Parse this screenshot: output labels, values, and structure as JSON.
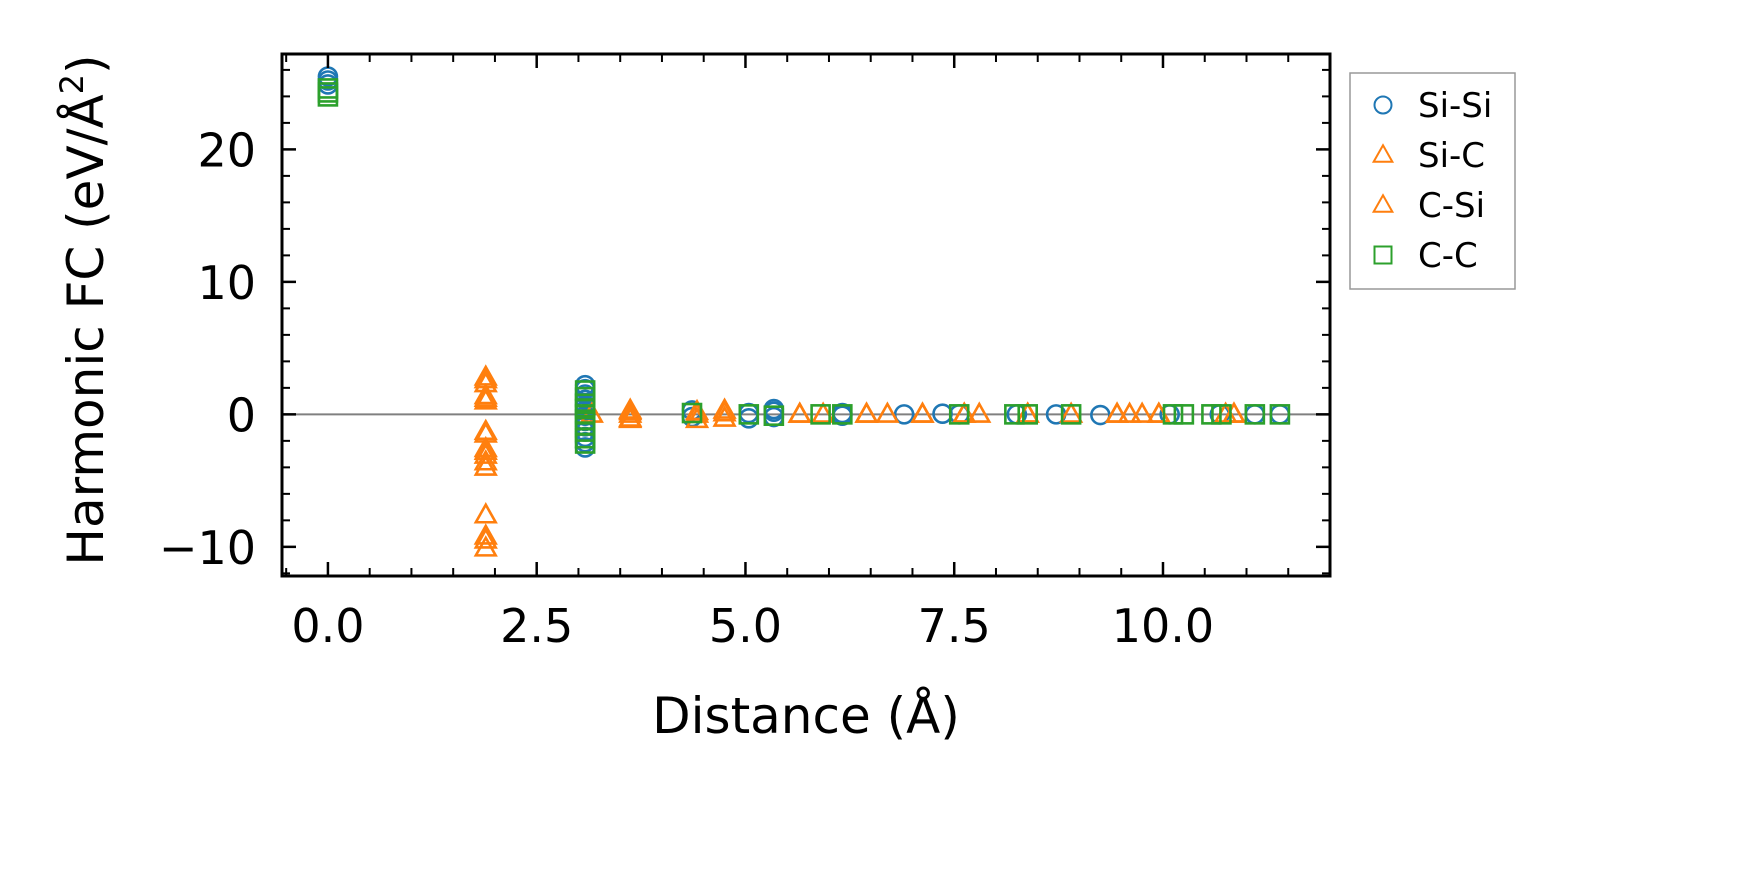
{
  "chart_data": {
    "type": "scatter",
    "title": "",
    "xlabel": "Distance (Å)",
    "ylabel_main": "Harmonic FC (eV/Å",
    "ylabel_sup": "2",
    "ylabel_close": ")",
    "xlim": [
      -0.55,
      12.0
    ],
    "ylim": [
      -12.2,
      27.2
    ],
    "xticks": [
      0.0,
      2.5,
      5.0,
      7.5,
      10.0
    ],
    "xtick_labels": [
      "0.0",
      "2.5",
      "5.0",
      "7.5",
      "10.0"
    ],
    "yticks": [
      -10,
      0,
      10,
      20
    ],
    "ytick_labels": [
      "−10",
      "0",
      "10",
      "20"
    ],
    "zero_line": 0,
    "legend_position": "outside-right",
    "series": [
      {
        "name": "Si-Si",
        "marker": "circle",
        "color": "#1f77b4",
        "points": [
          [
            0.0,
            25.5
          ],
          [
            0.0,
            25.2
          ],
          [
            0.0,
            24.9
          ],
          [
            3.08,
            2.2
          ],
          [
            3.08,
            1.9
          ],
          [
            3.08,
            1.5
          ],
          [
            3.08,
            1.1
          ],
          [
            3.08,
            0.7
          ],
          [
            3.08,
            0.3
          ],
          [
            3.08,
            -0.1
          ],
          [
            3.08,
            -0.5
          ],
          [
            3.08,
            -0.9
          ],
          [
            3.08,
            -1.3
          ],
          [
            3.08,
            -1.7
          ],
          [
            3.08,
            -2.1
          ],
          [
            3.08,
            -2.5
          ],
          [
            4.36,
            0.3
          ],
          [
            4.36,
            -0.2
          ],
          [
            5.04,
            -0.3
          ],
          [
            5.04,
            0.1
          ],
          [
            5.34,
            0.2
          ],
          [
            5.34,
            -0.2
          ],
          [
            5.34,
            0.4
          ],
          [
            6.16,
            0.1
          ],
          [
            6.16,
            -0.1
          ],
          [
            6.9,
            0.0
          ],
          [
            7.36,
            0.05
          ],
          [
            7.56,
            0.0
          ],
          [
            8.25,
            0.0
          ],
          [
            8.72,
            0.0
          ],
          [
            9.25,
            -0.05
          ],
          [
            10.08,
            0.0
          ],
          [
            10.68,
            0.0
          ],
          [
            11.1,
            0.0
          ],
          [
            11.4,
            0.0
          ]
        ]
      },
      {
        "name": "Si-C",
        "marker": "triangle",
        "color": "#ff7f0e",
        "points": [
          [
            1.89,
            2.8
          ],
          [
            1.89,
            2.3
          ],
          [
            1.89,
            1.4
          ],
          [
            1.89,
            1.0
          ],
          [
            1.89,
            -1.3
          ],
          [
            1.89,
            -2.6
          ],
          [
            1.89,
            -3.1
          ],
          [
            1.89,
            -4.0
          ],
          [
            1.89,
            -7.6
          ],
          [
            1.89,
            -9.5
          ],
          [
            1.89,
            -10.1
          ],
          [
            3.16,
            0.0
          ],
          [
            3.62,
            0.3
          ],
          [
            3.62,
            0.0
          ],
          [
            3.62,
            -0.4
          ],
          [
            4.42,
            0.2
          ],
          [
            4.42,
            -0.4
          ],
          [
            4.75,
            0.3
          ],
          [
            4.75,
            -0.3
          ],
          [
            5.65,
            0.0
          ],
          [
            5.93,
            0.0
          ],
          [
            6.45,
            0.0
          ],
          [
            6.7,
            0.0
          ],
          [
            7.12,
            0.0
          ],
          [
            7.62,
            0.0
          ],
          [
            7.8,
            0.0
          ],
          [
            8.38,
            0.0
          ],
          [
            8.9,
            0.0
          ],
          [
            9.45,
            0.0
          ],
          [
            9.6,
            0.0
          ],
          [
            9.75,
            0.0
          ],
          [
            9.95,
            0.0
          ],
          [
            10.75,
            0.0
          ],
          [
            10.85,
            0.0
          ]
        ]
      },
      {
        "name": "C-Si",
        "marker": "triangle",
        "color": "#ff7f0e",
        "points": [
          [
            1.89,
            2.6
          ],
          [
            1.89,
            1.2
          ],
          [
            1.89,
            -1.5
          ],
          [
            1.89,
            -2.8
          ],
          [
            1.89,
            -3.6
          ],
          [
            1.89,
            -9.2
          ],
          [
            3.62,
            0.2
          ],
          [
            3.62,
            -0.3
          ],
          [
            4.42,
            0.0
          ],
          [
            4.75,
            0.1
          ],
          [
            5.65,
            0.0
          ],
          [
            6.45,
            0.0
          ],
          [
            7.12,
            0.0
          ],
          [
            7.62,
            0.0
          ],
          [
            8.38,
            0.0
          ],
          [
            9.45,
            0.0
          ],
          [
            9.95,
            0.0
          ],
          [
            10.85,
            0.0
          ]
        ]
      },
      {
        "name": "C-C",
        "marker": "square",
        "color": "#2ca02c",
        "points": [
          [
            0.0,
            24.6
          ],
          [
            0.0,
            24.3
          ],
          [
            0.0,
            24.0
          ],
          [
            3.08,
            1.8
          ],
          [
            3.08,
            1.3
          ],
          [
            3.08,
            0.8
          ],
          [
            3.08,
            0.4
          ],
          [
            3.08,
            0.0
          ],
          [
            3.08,
            -0.4
          ],
          [
            3.08,
            -0.8
          ],
          [
            3.08,
            -1.3
          ],
          [
            3.08,
            -1.8
          ],
          [
            3.08,
            -2.2
          ],
          [
            4.36,
            0.1
          ],
          [
            5.04,
            0.0
          ],
          [
            5.34,
            -0.1
          ],
          [
            5.9,
            0.0
          ],
          [
            6.16,
            0.0
          ],
          [
            7.56,
            0.0
          ],
          [
            8.22,
            0.0
          ],
          [
            8.38,
            0.0
          ],
          [
            8.9,
            0.0
          ],
          [
            10.12,
            0.0
          ],
          [
            10.25,
            0.0
          ],
          [
            10.58,
            0.0
          ],
          [
            10.7,
            0.0
          ],
          [
            11.1,
            0.0
          ],
          [
            11.4,
            0.0
          ]
        ]
      }
    ]
  }
}
